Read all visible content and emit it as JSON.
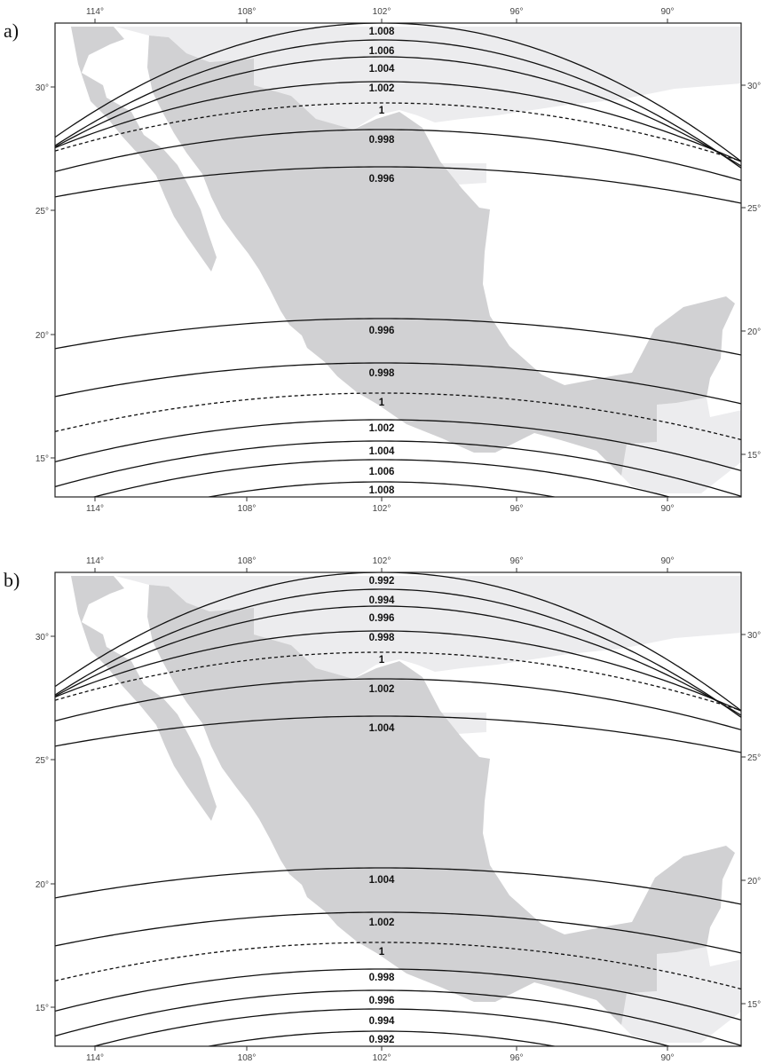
{
  "panels": [
    {
      "label": "a)",
      "lon_ticks": [
        "114°",
        "108°",
        "102°",
        "96°",
        "90°"
      ],
      "lat_ticks": [
        "30°",
        "25°",
        "20°",
        "15°"
      ],
      "isolines": [
        {
          "label": "1.008",
          "style": "solid"
        },
        {
          "label": "1.006",
          "style": "solid"
        },
        {
          "label": "1.004",
          "style": "solid"
        },
        {
          "label": "1.002",
          "style": "solid"
        },
        {
          "label": "1",
          "style": "dashed"
        },
        {
          "label": "0.998",
          "style": "solid"
        },
        {
          "label": "0.996",
          "style": "solid"
        },
        {
          "label": "0.996",
          "style": "solid"
        },
        {
          "label": "0.998",
          "style": "solid"
        },
        {
          "label": "1",
          "style": "dashed"
        },
        {
          "label": "1.002",
          "style": "solid"
        },
        {
          "label": "1.004",
          "style": "solid"
        },
        {
          "label": "1.006",
          "style": "solid"
        },
        {
          "label": "1.008",
          "style": "solid"
        }
      ]
    },
    {
      "label": "b)",
      "lon_ticks": [
        "114°",
        "108°",
        "102°",
        "96°",
        "90°"
      ],
      "lat_ticks": [
        "30°",
        "25°",
        "20°",
        "15°"
      ],
      "isolines": [
        {
          "label": "0.992",
          "style": "solid"
        },
        {
          "label": "0.994",
          "style": "solid"
        },
        {
          "label": "0.996",
          "style": "solid"
        },
        {
          "label": "0.998",
          "style": "solid"
        },
        {
          "label": "1",
          "style": "dashed"
        },
        {
          "label": "1.002",
          "style": "solid"
        },
        {
          "label": "1.004",
          "style": "solid"
        },
        {
          "label": "1.004",
          "style": "solid"
        },
        {
          "label": "1.002",
          "style": "solid"
        },
        {
          "label": "1",
          "style": "dashed"
        },
        {
          "label": "0.998",
          "style": "solid"
        },
        {
          "label": "0.996",
          "style": "solid"
        },
        {
          "label": "0.994",
          "style": "solid"
        },
        {
          "label": "0.992",
          "style": "solid"
        }
      ]
    }
  ],
  "colors": {
    "land_mexico": "#d1d1d3",
    "land_neighbors": "#ececee",
    "isoline": "#111111",
    "frame": "#222222"
  }
}
